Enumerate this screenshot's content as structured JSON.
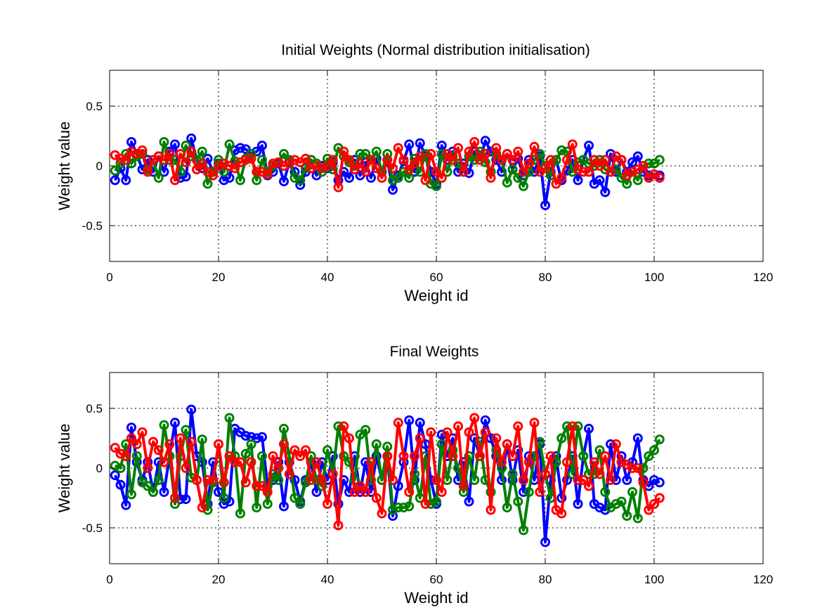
{
  "chart_data": [
    {
      "type": "line",
      "title": "Initial Weights (Normal distribution initialisation)",
      "xlabel": "Weight id",
      "ylabel": "Weight value",
      "xlim": [
        0,
        120
      ],
      "ylim": [
        -0.8,
        0.8
      ],
      "xticks": [
        "0",
        "20",
        "40",
        "60",
        "80",
        "100",
        "120"
      ],
      "yticks": [
        "-0.5",
        "0",
        "0.5"
      ],
      "xtick_values": [
        0,
        20,
        40,
        60,
        80,
        100,
        120
      ],
      "ytick_values": [
        -0.5,
        0,
        0.5
      ],
      "grid": true,
      "marker": "circle",
      "x": [
        1,
        2,
        3,
        4,
        5,
        6,
        7,
        8,
        9,
        10,
        11,
        12,
        13,
        14,
        15,
        16,
        17,
        18,
        19,
        20,
        21,
        22,
        23,
        24,
        25,
        26,
        27,
        28,
        29,
        30,
        31,
        32,
        33,
        34,
        35,
        36,
        37,
        38,
        39,
        40,
        41,
        42,
        43,
        44,
        45,
        46,
        47,
        48,
        49,
        50,
        51,
        52,
        53,
        54,
        55,
        56,
        57,
        58,
        59,
        60,
        61,
        62,
        63,
        64,
        65,
        66,
        67,
        68,
        69,
        70,
        71,
        72,
        73,
        74,
        75,
        76,
        77,
        78,
        79,
        80,
        81,
        82,
        83,
        84,
        85,
        86,
        87,
        88,
        89,
        90,
        91,
        92,
        93,
        94,
        95,
        96,
        97,
        98,
        99,
        100,
        101
      ],
      "series": [
        {
          "color": "#0000ff",
          "values": [
            -0.12,
            -0.02,
            -0.12,
            0.2,
            0.1,
            -0.03,
            0.05,
            -0.05,
            0.08,
            -0.05,
            0.12,
            0.18,
            -0.1,
            -0.09,
            0.23,
            0.05,
            -0.02,
            0.06,
            -0.05,
            0.02,
            -0.12,
            -0.1,
            0.13,
            0.15,
            0.14,
            0.1,
            0.12,
            0.17,
            -0.08,
            -0.05,
            0.02,
            -0.13,
            0.03,
            -0.05,
            -0.16,
            -0.05,
            0.05,
            -0.08,
            0.0,
            -0.02,
            0.03,
            -0.12,
            -0.05,
            -0.1,
            0.05,
            -0.08,
            0.03,
            -0.1,
            0.06,
            -0.05,
            0.05,
            -0.2,
            -0.08,
            0.04,
            0.18,
            -0.05,
            0.19,
            0.08,
            -0.05,
            -0.15,
            0.17,
            0.05,
            0.12,
            -0.05,
            0.02,
            -0.06,
            0.12,
            0.05,
            0.21,
            0.12,
            0.05,
            -0.05,
            0.1,
            -0.03,
            0.06,
            -0.08,
            0.05,
            -0.05,
            0.08,
            -0.33,
            -0.05,
            0.05,
            -0.12,
            -0.04,
            0.05,
            -0.12,
            0.05,
            0.17,
            -0.15,
            -0.12,
            -0.22,
            0.1,
            -0.05,
            0.05,
            -0.05,
            0.03,
            0.08,
            -0.05,
            -0.08,
            -0.07,
            -0.08
          ]
        },
        {
          "color": "#008000",
          "values": [
            -0.04,
            0.02,
            0.1,
            0.02,
            0.08,
            0.1,
            -0.03,
            0.05,
            -0.1,
            0.2,
            0.05,
            0.05,
            -0.05,
            0.17,
            0.08,
            0.05,
            0.12,
            -0.15,
            -0.05,
            0.05,
            -0.05,
            0.18,
            0.04,
            -0.12,
            0.06,
            0.1,
            -0.12,
            0.05,
            -0.05,
            0.0,
            0.03,
            0.1,
            0.05,
            -0.1,
            -0.12,
            -0.02,
            0.05,
            0.02,
            -0.05,
            0.06,
            -0.03,
            0.15,
            0.08,
            0.03,
            0.0,
            0.1,
            0.1,
            0.05,
            0.12,
            -0.05,
            0.1,
            -0.12,
            -0.1,
            -0.05,
            -0.1,
            0.06,
            -0.05,
            0.1,
            -0.15,
            -0.17,
            0.1,
            -0.05,
            0.08,
            0.02,
            -0.05,
            0.08,
            0.05,
            0.12,
            0.03,
            -0.05,
            0.1,
            0.05,
            -0.14,
            -0.03,
            -0.1,
            -0.17,
            -0.05,
            0.05,
            0.1,
            0.0,
            -0.08,
            0.05,
            0.13,
            0.12,
            -0.05,
            0.03,
            0.05,
            0.02,
            0.0,
            0.05,
            -0.03,
            -0.05,
            -0.03,
            -0.1,
            -0.15,
            -0.05,
            -0.12,
            0.0,
            0.02,
            0.02,
            0.05
          ]
        },
        {
          "color": "#ff0000",
          "values": [
            0.09,
            0.06,
            0.05,
            0.12,
            0.1,
            0.13,
            -0.05,
            0.05,
            0.08,
            0.05,
            0.1,
            -0.12,
            0.1,
            0.03,
            0.12,
            -0.03,
            0.02,
            -0.05,
            -0.08,
            0.0,
            0.02,
            0.0,
            -0.02,
            0.03,
            0.05,
            0.06,
            -0.05,
            -0.05,
            -0.07,
            0.02,
            0.03,
            0.0,
            0.02,
            0.05,
            0.03,
            0.06,
            -0.02,
            0.0,
            -0.02,
            0.0,
            0.05,
            -0.18,
            0.12,
            0.05,
            -0.03,
            0.02,
            -0.05,
            0.05,
            -0.02,
            -0.1,
            0.05,
            -0.02,
            0.15,
            0.05,
            -0.03,
            0.02,
            0.08,
            -0.12,
            0.1,
            -0.05,
            -0.1,
            0.1,
            0.05,
            0.15,
            -0.05,
            0.12,
            0.2,
            0.05,
            0.1,
            -0.1,
            0.15,
            0.05,
            0.1,
            0.05,
            0.12,
            -0.05,
            0.02,
            0.16,
            -0.05,
            -0.02,
            0.05,
            -0.15,
            -0.1,
            0.05,
            0.18,
            -0.03,
            -0.05,
            -0.05,
            0.05,
            0.0,
            0.05,
            -0.05,
            0.08,
            0.05,
            -0.08,
            -0.05,
            -0.03,
            0.0,
            -0.1,
            -0.07,
            -0.1
          ]
        }
      ]
    },
    {
      "type": "line",
      "title": "Final Weights",
      "xlabel": "Weight id",
      "ylabel": "Weight value",
      "xlim": [
        0,
        120
      ],
      "ylim": [
        -0.8,
        0.8
      ],
      "xticks": [
        "0",
        "20",
        "40",
        "60",
        "80",
        "100",
        "120"
      ],
      "yticks": [
        "-0.5",
        "0",
        "0.5"
      ],
      "xtick_values": [
        0,
        20,
        40,
        60,
        80,
        100,
        120
      ],
      "ytick_values": [
        -0.5,
        0,
        0.5
      ],
      "grid": true,
      "marker": "circle",
      "x": [
        1,
        2,
        3,
        4,
        5,
        6,
        7,
        8,
        9,
        10,
        11,
        12,
        13,
        14,
        15,
        16,
        17,
        18,
        19,
        20,
        21,
        22,
        23,
        24,
        25,
        26,
        27,
        28,
        29,
        30,
        31,
        32,
        33,
        34,
        35,
        36,
        37,
        38,
        39,
        40,
        41,
        42,
        43,
        44,
        45,
        46,
        47,
        48,
        49,
        50,
        51,
        52,
        53,
        54,
        55,
        56,
        57,
        58,
        59,
        60,
        61,
        62,
        63,
        64,
        65,
        66,
        67,
        68,
        69,
        70,
        71,
        72,
        73,
        74,
        75,
        76,
        77,
        78,
        79,
        80,
        81,
        82,
        83,
        84,
        85,
        86,
        87,
        88,
        89,
        90,
        91,
        92,
        93,
        94,
        95,
        96,
        97,
        98,
        99,
        100,
        101
      ],
      "series": [
        {
          "color": "#0000ff",
          "values": [
            -0.06,
            -0.14,
            -0.31,
            0.34,
            0.05,
            -0.1,
            0.05,
            -0.2,
            0.05,
            -0.2,
            0.1,
            0.38,
            -0.26,
            -0.26,
            0.49,
            0.1,
            0.05,
            -0.3,
            0.05,
            -0.2,
            -0.3,
            -0.28,
            0.33,
            0.3,
            0.27,
            0.26,
            0.25,
            0.26,
            -0.15,
            -0.1,
            0.05,
            -0.32,
            0.05,
            -0.1,
            -0.28,
            -0.1,
            0.05,
            -0.2,
            0.05,
            -0.1,
            0.1,
            -0.3,
            -0.1,
            -0.2,
            0.1,
            -0.2,
            0.05,
            -0.2,
            0.1,
            -0.1,
            0.1,
            -0.4,
            -0.15,
            0.05,
            0.4,
            -0.1,
            0.38,
            0.2,
            -0.1,
            -0.3,
            0.28,
            0.1,
            0.25,
            -0.1,
            0.05,
            -0.28,
            0.25,
            0.1,
            0.4,
            0.25,
            0.1,
            -0.1,
            0.2,
            -0.1,
            0.15,
            -0.2,
            0.1,
            -0.1,
            0.2,
            -0.62,
            -0.1,
            0.1,
            -0.25,
            -0.1,
            0.1,
            -0.3,
            0.1,
            0.33,
            -0.3,
            -0.33,
            -0.35,
            0.2,
            -0.1,
            0.1,
            -0.1,
            0.05,
            0.25,
            -0.1,
            -0.15,
            -0.1,
            -0.12
          ]
        },
        {
          "color": "#008000",
          "values": [
            0.02,
            0.0,
            0.2,
            -0.22,
            0.1,
            -0.12,
            -0.15,
            -0.2,
            -0.1,
            0.36,
            0.1,
            -0.3,
            0.1,
            0.32,
            -0.08,
            -0.1,
            0.24,
            -0.35,
            -0.12,
            0.2,
            -0.25,
            0.42,
            0.1,
            -0.38,
            0.12,
            0.2,
            -0.33,
            0.1,
            -0.3,
            -0.05,
            -0.1,
            0.33,
            0.1,
            -0.25,
            -0.3,
            -0.12,
            0.1,
            -0.1,
            -0.15,
            0.15,
            -0.05,
            0.35,
            0.1,
            0.05,
            -0.1,
            0.28,
            0.32,
            -0.1,
            0.2,
            -0.1,
            0.18,
            -0.35,
            -0.33,
            -0.33,
            -0.32,
            -0.05,
            -0.25,
            0.1,
            -0.3,
            -0.28,
            0.2,
            -0.1,
            0.15,
            0.0,
            -0.2,
            0.1,
            -0.1,
            0.22,
            -0.1,
            -0.2,
            0.15,
            0.0,
            -0.33,
            -0.05,
            -0.28,
            -0.52,
            -0.2,
            0.1,
            0.22,
            -0.05,
            -0.25,
            0.05,
            0.25,
            0.35,
            -0.05,
            0.35,
            0.1,
            -0.05,
            -0.05,
            0.15,
            -0.2,
            -0.33,
            -0.3,
            -0.28,
            -0.4,
            -0.2,
            -0.42,
            0.0,
            0.1,
            0.15,
            0.24
          ]
        },
        {
          "color": "#ff0000",
          "values": [
            0.17,
            0.12,
            0.1,
            0.25,
            0.2,
            0.3,
            0.0,
            0.22,
            0.15,
            0.05,
            0.2,
            -0.25,
            0.25,
            0.0,
            0.22,
            -0.1,
            -0.33,
            -0.1,
            -0.1,
            0.2,
            -0.12,
            0.1,
            0.05,
            0.05,
            -0.12,
            0.05,
            -0.15,
            -0.15,
            -0.2,
            0.1,
            0.0,
            0.2,
            -0.05,
            0.15,
            0.1,
            0.15,
            -0.1,
            0.05,
            -0.1,
            -0.3,
            -0.05,
            -0.48,
            0.35,
            0.25,
            -0.2,
            -0.15,
            -0.2,
            0.05,
            -0.25,
            -0.38,
            0.1,
            -0.1,
            0.38,
            0.1,
            -0.2,
            0.1,
            0.25,
            -0.3,
            0.3,
            -0.1,
            -0.2,
            0.3,
            0.1,
            0.35,
            -0.15,
            0.3,
            0.42,
            0.1,
            0.3,
            -0.35,
            0.25,
            0.05,
            0.2,
            0.1,
            0.35,
            -0.1,
            0.05,
            0.38,
            -0.2,
            -0.05,
            0.1,
            -0.35,
            -0.38,
            0.05,
            0.35,
            -0.1,
            -0.1,
            -0.15,
            0.05,
            -0.05,
            0.1,
            -0.1,
            0.2,
            0.05,
            0.03,
            0.0,
            0.0,
            -0.12,
            -0.35,
            -0.3,
            -0.25
          ]
        }
      ]
    }
  ]
}
